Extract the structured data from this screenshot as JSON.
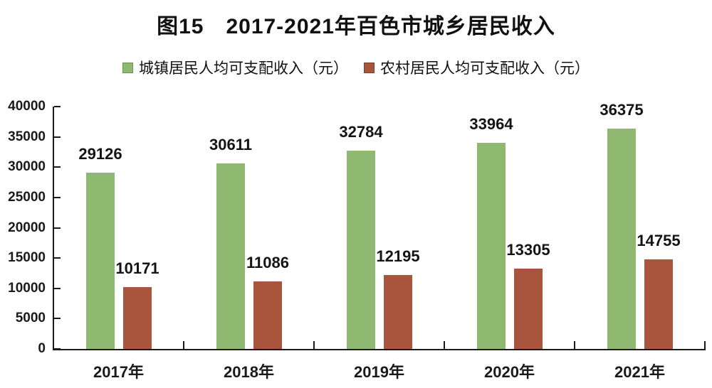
{
  "chart_data": {
    "type": "bar",
    "title": "图15　2017-2021年百色市城乡居民收入",
    "categories": [
      "2017年",
      "2018年",
      "2019年",
      "2020年",
      "2021年"
    ],
    "series": [
      {
        "name": "城镇居民人均可支配收入（元）",
        "key": "urban",
        "color": "#8fb870",
        "border_color": "#6e9150",
        "values": [
          29126,
          30611,
          32784,
          33964,
          36375
        ]
      },
      {
        "name": "农村居民人均可支配收入（元）",
        "key": "rural",
        "color": "#a9553e",
        "border_color": "#7e3c2b",
        "values": [
          10171,
          11086,
          12195,
          13305,
          14755
        ]
      }
    ],
    "ylim": [
      0,
      40000
    ],
    "ytick_step": 5000,
    "yticks": [
      0,
      5000,
      10000,
      15000,
      20000,
      25000,
      30000,
      35000,
      40000
    ],
    "grid": false,
    "legend_position": "top",
    "value_labels": true,
    "axis_color": "#1a1a1a",
    "text_color": "#141414",
    "background_color": "#ffffff",
    "xlabel": "",
    "ylabel": ""
  }
}
